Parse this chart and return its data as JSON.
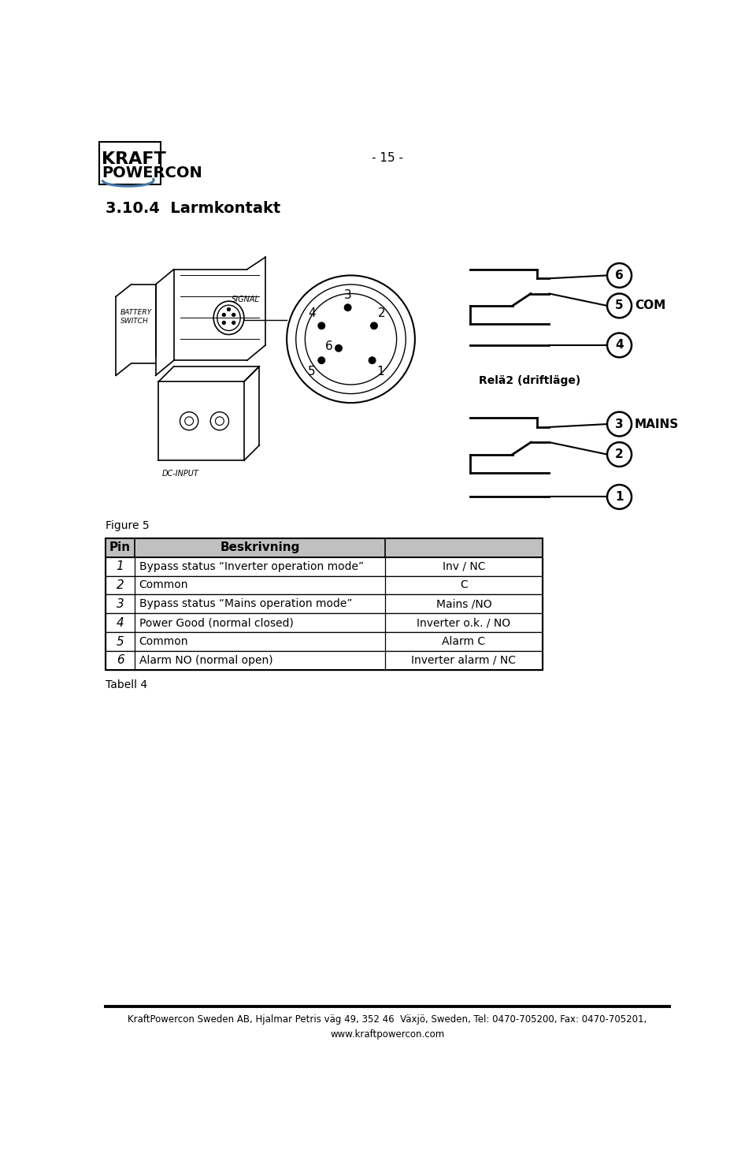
{
  "page_number": "- 15 -",
  "section_title": "3.10.4  Larmkontakt",
  "figure_label": "Figure 5",
  "table_label": "Tabell 4",
  "footer_text": "KraftPowercon Sweden AB, Hjalmar Petris väg 49, 352 46  Växjö, Sweden, Tel: 0470-705200, Fax: 0470-705201,\nwww.kraftpowercon.com",
  "table_rows": [
    [
      "1",
      "Bypass status “Inverter operation mode”",
      "Inv / NC"
    ],
    [
      "2",
      "Common",
      "C"
    ],
    [
      "3",
      "Bypass status “Mains operation mode”",
      "Mains /NO"
    ],
    [
      "4",
      "Power Good (normal closed)",
      "Inverter o.k. / NO"
    ],
    [
      "5",
      "Common",
      "Alarm C"
    ],
    [
      "6",
      "Alarm NO (normal open)",
      "Inverter alarm / NC"
    ]
  ],
  "bg_color": "#ffffff",
  "text_color": "#000000"
}
